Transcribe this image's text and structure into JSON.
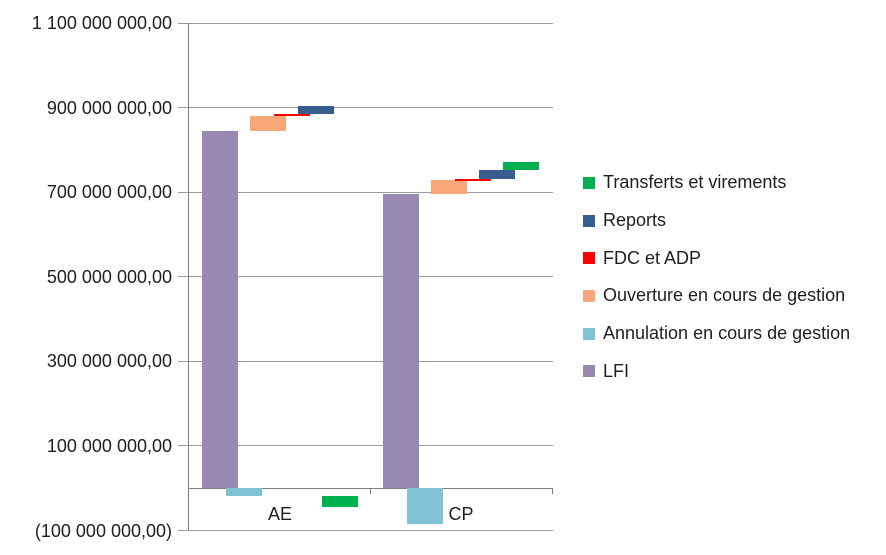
{
  "chart_data": {
    "type": "bar",
    "subtype": "waterfall_stacked_columns",
    "title": "",
    "categories": [
      "AE",
      "CP"
    ],
    "series": [
      {
        "name": "LFI",
        "color": "#9889B3",
        "values": [
          845000000,
          696000000
        ]
      },
      {
        "name": "Annulation en cours de gestion",
        "color": "#7FC3D5",
        "values": [
          -18000000,
          -85000000
        ]
      },
      {
        "name": "Ouverture en cours de gestion",
        "color": "#F8A878",
        "values": [
          36000000,
          33000000
        ]
      },
      {
        "name": "FDC et ADP",
        "color": "#FF0000",
        "values": [
          5000000,
          3000000
        ]
      },
      {
        "name": "Reports",
        "color": "#385E91",
        "values": [
          18000000,
          21000000
        ]
      },
      {
        "name": "Transferts et virements",
        "color": "#00B050",
        "values": [
          -27000000,
          19000000
        ]
      }
    ],
    "legend": {
      "position": "right",
      "items": [
        "Transferts et virements",
        "Reports",
        "FDC et ADP",
        "Ouverture en cours de gestion",
        "Annulation en cours de gestion",
        "LFI"
      ]
    },
    "y_axis": {
      "ylim": [
        -100000000,
        1100000000
      ],
      "tick_interval": 200000000,
      "tick_values": [
        1100000000,
        900000000,
        700000000,
        500000000,
        300000000,
        100000000,
        -100000000
      ],
      "tick_labels": [
        "1 100 000 000,00",
        "900 000 000,00",
        "700 000 000,00",
        "500 000 000,00",
        "300 000 000,00",
        "100 000 000,00",
        "(100 000 000,00)"
      ],
      "grid": true
    },
    "x_axis": {
      "labels": [
        "AE",
        "CP"
      ]
    },
    "colors": {
      "gridline": "#9c9c9c",
      "axis": "#808080",
      "text": "#1f1f1f"
    }
  }
}
